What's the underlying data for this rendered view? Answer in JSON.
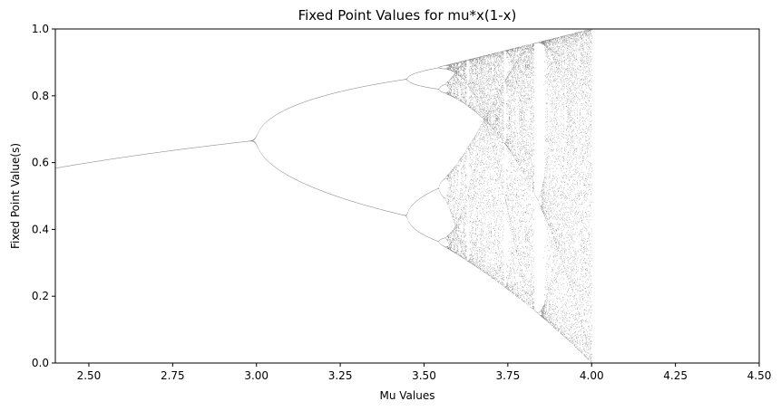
{
  "chart_data": {
    "type": "scatter",
    "title": "Fixed Point Values for mu*x(1-x)",
    "xlabel": "Mu Values",
    "ylabel": "Fixed Point Value(s)",
    "xlim": [
      2.4,
      4.5
    ],
    "ylim": [
      0.0,
      1.0
    ],
    "xticks": [
      "2.50",
      "2.75",
      "3.00",
      "3.25",
      "3.50",
      "3.75",
      "4.00",
      "4.25",
      "4.50"
    ],
    "xtick_values": [
      2.5,
      2.75,
      3.0,
      3.25,
      3.5,
      3.75,
      4.0,
      4.25,
      4.5
    ],
    "yticks": [
      "0.0",
      "0.2",
      "0.4",
      "0.6",
      "0.8",
      "1.0"
    ],
    "ytick_values": [
      0.0,
      0.2,
      0.4,
      0.6,
      0.8,
      1.0
    ],
    "grid": false,
    "series": [
      {
        "function": "mu*x*(1-x)",
        "mu_range": [
          2.4,
          4.0
        ],
        "color": "#000000"
      }
    ]
  }
}
